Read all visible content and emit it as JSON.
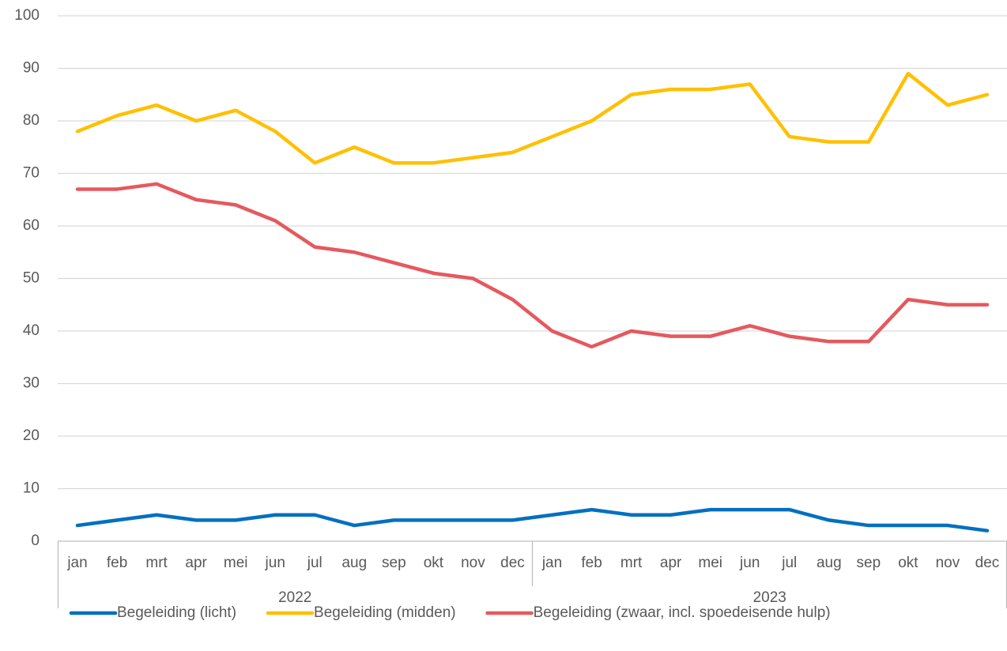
{
  "chart_data": {
    "type": "line",
    "categories": [
      "jan",
      "feb",
      "mrt",
      "apr",
      "mei",
      "jun",
      "jul",
      "aug",
      "sep",
      "okt",
      "nov",
      "dec",
      "jan",
      "feb",
      "mrt",
      "apr",
      "mei",
      "jun",
      "jul",
      "aug",
      "sep",
      "okt",
      "nov",
      "dec"
    ],
    "category_groups": [
      {
        "label": "2022",
        "span": 12
      },
      {
        "label": "2023",
        "span": 12
      }
    ],
    "series": [
      {
        "name": "Begeleiding (licht)",
        "color": "#0070c0",
        "values": [
          3,
          4,
          5,
          4,
          4,
          5,
          5,
          3,
          4,
          4,
          4,
          4,
          5,
          6,
          5,
          5,
          6,
          6,
          6,
          4,
          3,
          3,
          3,
          2
        ]
      },
      {
        "name": "Begeleiding (midden)",
        "color": "#ffc000",
        "values": [
          78,
          81,
          83,
          80,
          82,
          78,
          72,
          75,
          72,
          72,
          73,
          74,
          77,
          80,
          85,
          86,
          86,
          87,
          77,
          76,
          76,
          89,
          83,
          85
        ]
      },
      {
        "name": "Begeleiding (zwaar, incl. spoedeisende hulp)",
        "color": "#e5595f",
        "values": [
          67,
          67,
          68,
          65,
          64,
          61,
          56,
          55,
          53,
          51,
          50,
          46,
          40,
          37,
          40,
          39,
          39,
          41,
          39,
          38,
          38,
          46,
          45,
          45
        ]
      }
    ],
    "ylim": [
      0,
      100
    ],
    "yticks": [
      0,
      10,
      20,
      30,
      40,
      50,
      60,
      70,
      80,
      90,
      100
    ],
    "grid": true,
    "legend": "bottom"
  }
}
